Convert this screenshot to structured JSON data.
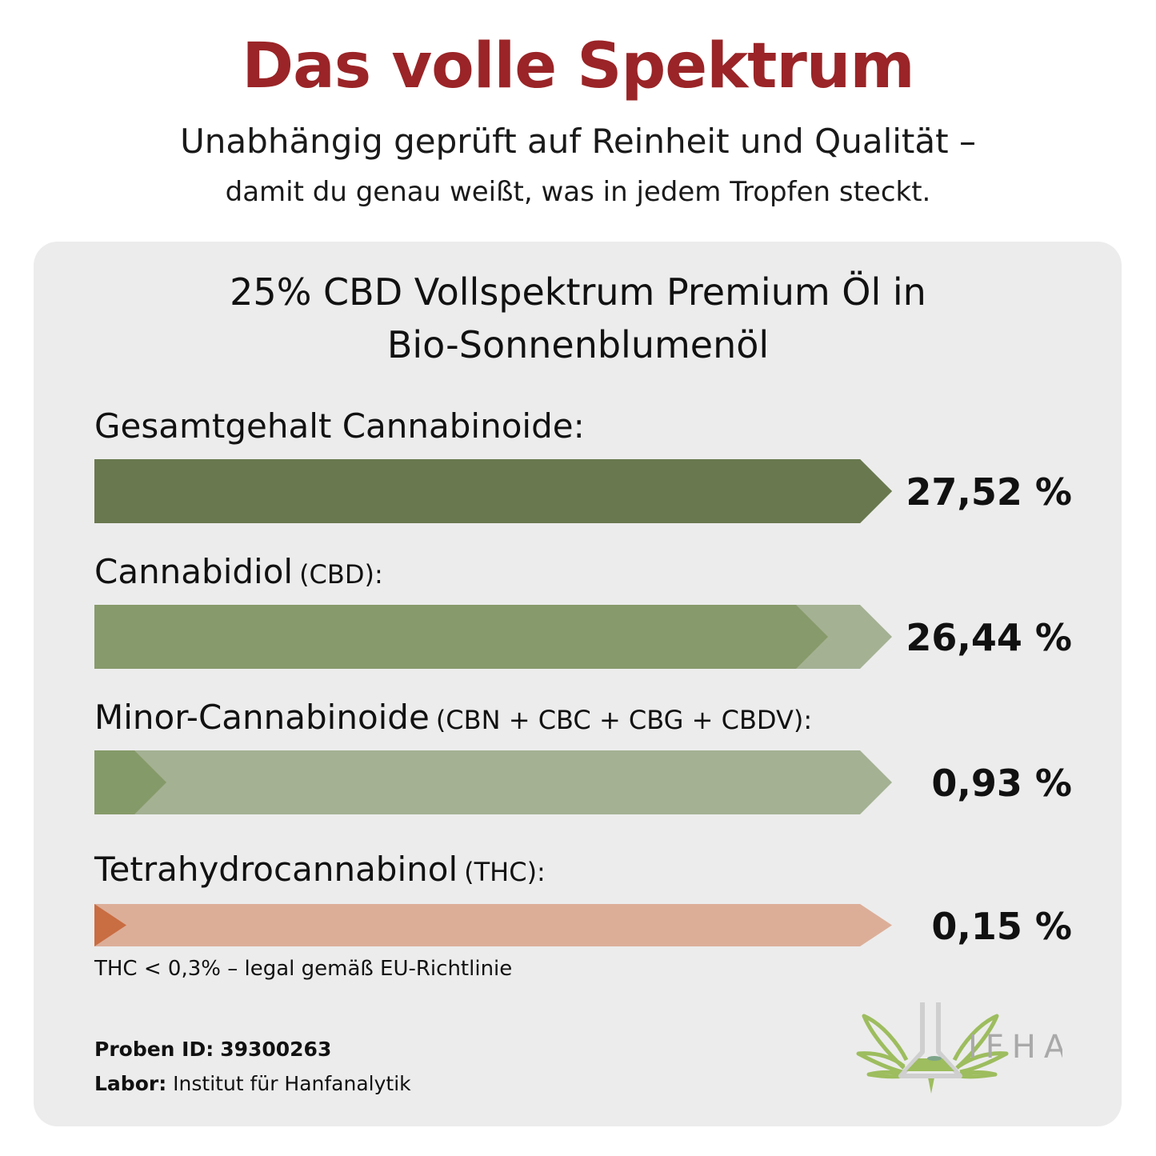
{
  "header": {
    "title": "Das volle Spektrum",
    "subtitle_line1": "Unabhängig geprüft auf Reinheit und Qualität –",
    "subtitle_line2": "damit du genau weißt, was in jedem Tropfen steckt."
  },
  "card": {
    "heading_line1": "25% CBD Vollspektrum Premium Öl in",
    "heading_line2": "Bio-Sonnenblumenöl"
  },
  "chart_data": {
    "type": "bar",
    "orientation": "horizontal",
    "categories": [
      "Gesamtgehalt Cannabinoide",
      "Cannabidiol",
      "Minor-Cannabinoide",
      "Tetrahydrocannabinol"
    ],
    "series": [
      {
        "label": "Gesamtgehalt Cannabinoide:",
        "sublabel": "",
        "value": 27.52,
        "value_label": "27,52 %",
        "fill_fraction": 1.0,
        "fill_color": "#69784f",
        "track_color": "#69784f"
      },
      {
        "label": "Cannabidiol",
        "sublabel": "(CBD):",
        "value": 26.44,
        "value_label": "26,44 %",
        "fill_fraction": 0.92,
        "fill_color": "#879a6b",
        "track_color": "#a4b193"
      },
      {
        "label": "Minor-Cannabinoide",
        "sublabel": "(CBN + CBC + CBG + CBDV):",
        "value": 0.93,
        "value_label": "0,93 %",
        "fill_fraction": 0.09,
        "fill_color": "#859a69",
        "track_color": "#a4b193"
      },
      {
        "label": "Tetrahydrocannabinol",
        "sublabel": "(THC):",
        "value": 0.15,
        "value_label": "0,15 %",
        "fill_fraction": 0.035,
        "fill_color": "#c96d42",
        "track_color": "#dcae98"
      }
    ]
  },
  "note": "THC < 0,3% – legal gemäß EU-Richtlinie",
  "meta": {
    "sample_label": "Proben ID:",
    "sample_value": "39300263",
    "lab_label": "Labor:",
    "lab_value": "Institut für Hanfanalytik"
  },
  "logo": {
    "text": "IFHA",
    "icon": "cannabis-leaf-flask-icon"
  },
  "colors": {
    "title": "#9a2427",
    "card": "#ececec"
  }
}
